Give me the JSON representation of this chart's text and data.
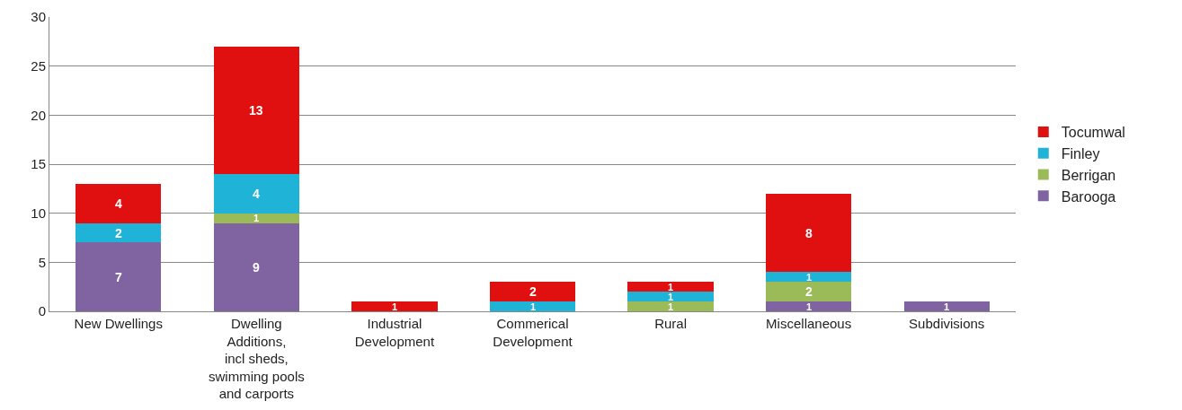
{
  "chart_data": {
    "type": "bar",
    "stacked": true,
    "categories": [
      "New Dwellings",
      "Dwelling Additions, incl sheds, swimming pools and carports",
      "Industrial Development",
      "Commerical Development",
      "Rural",
      "Miscellaneous",
      "Subdivisions"
    ],
    "series": [
      {
        "name": "Barooga",
        "color": "#8064a2",
        "values": [
          7,
          9,
          0,
          0,
          0,
          1,
          1
        ],
        "value_labels": [
          "7",
          "9",
          null,
          null,
          null,
          "1",
          "1"
        ]
      },
      {
        "name": "Berrigan",
        "color": "#9bbb59",
        "values": [
          0,
          1,
          0,
          0,
          1,
          2,
          0
        ],
        "value_labels": [
          null,
          "1",
          null,
          null,
          "1",
          "2",
          null
        ]
      },
      {
        "name": "Finley",
        "color": "#1fb3d8",
        "values": [
          2,
          4,
          0,
          1,
          1,
          1,
          0
        ],
        "value_labels": [
          "2",
          "4",
          null,
          "1",
          "1",
          "1",
          null
        ]
      },
      {
        "name": "Tocumwal",
        "color": "#e01010",
        "values": [
          4,
          13,
          1,
          2,
          1,
          8,
          0
        ],
        "value_labels": [
          "4",
          "13",
          "1",
          "2",
          "1",
          "8",
          null
        ]
      }
    ],
    "ylim": [
      0,
      30
    ],
    "yticks": [
      0,
      5,
      10,
      15,
      20,
      25,
      30
    ],
    "grid": "y",
    "legend": "right"
  }
}
